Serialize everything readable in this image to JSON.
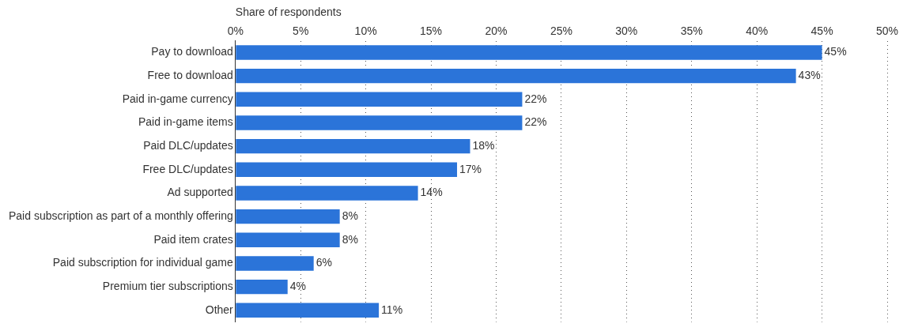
{
  "chart_data": {
    "type": "bar",
    "orientation": "horizontal",
    "xlabel": "Share of respondents",
    "categories": [
      "Pay to download",
      "Free to download",
      "Paid in-game currency",
      "Paid in-game items",
      "Paid DLC/updates",
      "Free DLC/updates",
      "Ad supported",
      "Paid subscription as part of a monthly offering",
      "Paid item crates",
      "Paid subscription for individual game",
      "Premium tier subscriptions",
      "Other"
    ],
    "values": [
      45,
      43,
      22,
      22,
      18,
      17,
      14,
      8,
      8,
      6,
      4,
      11
    ],
    "value_labels": [
      "45%",
      "43%",
      "22%",
      "22%",
      "18%",
      "17%",
      "14%",
      "8%",
      "8%",
      "6%",
      "4%",
      "11%"
    ],
    "color": "#2b74d9",
    "xlim": [
      0,
      50
    ],
    "xticks": [
      {
        "value": 0,
        "label": "0%"
      },
      {
        "value": 5,
        "label": "5%"
      },
      {
        "value": 10,
        "label": "10%"
      },
      {
        "value": 15,
        "label": "15%"
      },
      {
        "value": 20,
        "label": "20%"
      },
      {
        "value": 25,
        "label": "25%"
      },
      {
        "value": 30,
        "label": "30%"
      },
      {
        "value": 35,
        "label": "35%"
      },
      {
        "value": 40,
        "label": "40%"
      },
      {
        "value": 45,
        "label": "45%"
      },
      {
        "value": 50,
        "label": "50%"
      }
    ],
    "grid": "x",
    "legend": false
  }
}
